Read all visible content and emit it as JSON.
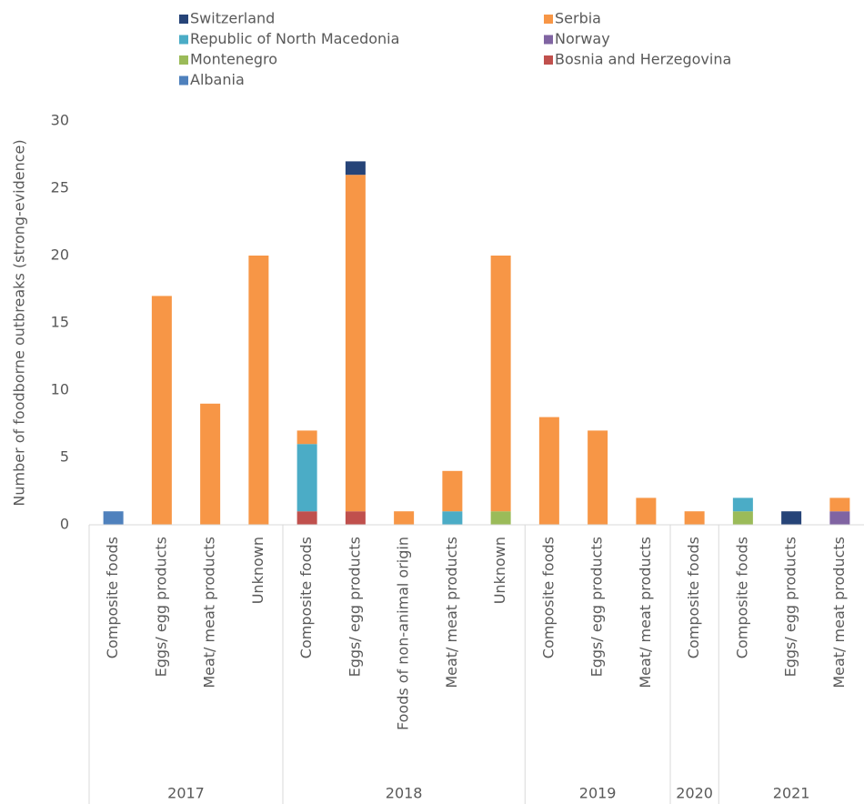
{
  "chart_data": {
    "type": "stacked_bar",
    "y_label": "Number of foodborne outbreaks (strong-evidence)",
    "categories": [
      "Composite foods",
      "Eggs/ egg products",
      "Meat/ meat products",
      "Unknown",
      "Composite foods",
      "Eggs/ egg products",
      "Foods of non-animal origin",
      "Meat/ meat products",
      "Unknown",
      "Composite foods",
      "Eggs/ egg products",
      "Meat/ meat products",
      "Composite foods",
      "Composite foods",
      "Eggs/ egg products",
      "Meat/ meat products"
    ],
    "category_groups": [
      "2017",
      "2017",
      "2017",
      "2017",
      "2018",
      "2018",
      "2018",
      "2018",
      "2018",
      "2019",
      "2019",
      "2019",
      "2020",
      "2021",
      "2021",
      "2021"
    ],
    "series": [
      {
        "name": "Switzerland",
        "color": "#264478",
        "values": [
          null,
          null,
          null,
          null,
          null,
          1,
          null,
          null,
          null,
          null,
          null,
          null,
          null,
          null,
          1,
          null
        ]
      },
      {
        "name": "Serbia",
        "color": "#f79646",
        "values": [
          null,
          17,
          9,
          20,
          1,
          25,
          1,
          3,
          19,
          8,
          7,
          2,
          1,
          null,
          null,
          1
        ]
      },
      {
        "name": "Republic of North Macedonia",
        "color": "#4bacc6",
        "values": [
          null,
          null,
          null,
          null,
          5,
          null,
          null,
          1,
          null,
          null,
          null,
          null,
          null,
          1,
          null,
          null
        ]
      },
      {
        "name": "Norway",
        "color": "#8064a2",
        "values": [
          null,
          null,
          null,
          null,
          null,
          null,
          null,
          null,
          null,
          null,
          null,
          null,
          null,
          null,
          null,
          1
        ]
      },
      {
        "name": "Montenegro",
        "color": "#9bbb59",
        "values": [
          null,
          null,
          null,
          null,
          null,
          null,
          null,
          null,
          1,
          null,
          null,
          null,
          null,
          1,
          null,
          null
        ]
      },
      {
        "name": "Bosnia and Herzegovina",
        "color": "#c0504d",
        "values": [
          null,
          null,
          null,
          null,
          1,
          1,
          null,
          null,
          null,
          null,
          null,
          null,
          null,
          null,
          null,
          null
        ]
      },
      {
        "name": "Albania",
        "color": "#4f81bd",
        "values": [
          1,
          null,
          null,
          null,
          null,
          null,
          null,
          null,
          null,
          null,
          null,
          null,
          null,
          null,
          null,
          null
        ]
      }
    ],
    "ylim": [
      0,
      30
    ],
    "yticks": [
      0,
      5,
      10,
      15,
      20,
      25,
      30
    ],
    "grid": false
  }
}
